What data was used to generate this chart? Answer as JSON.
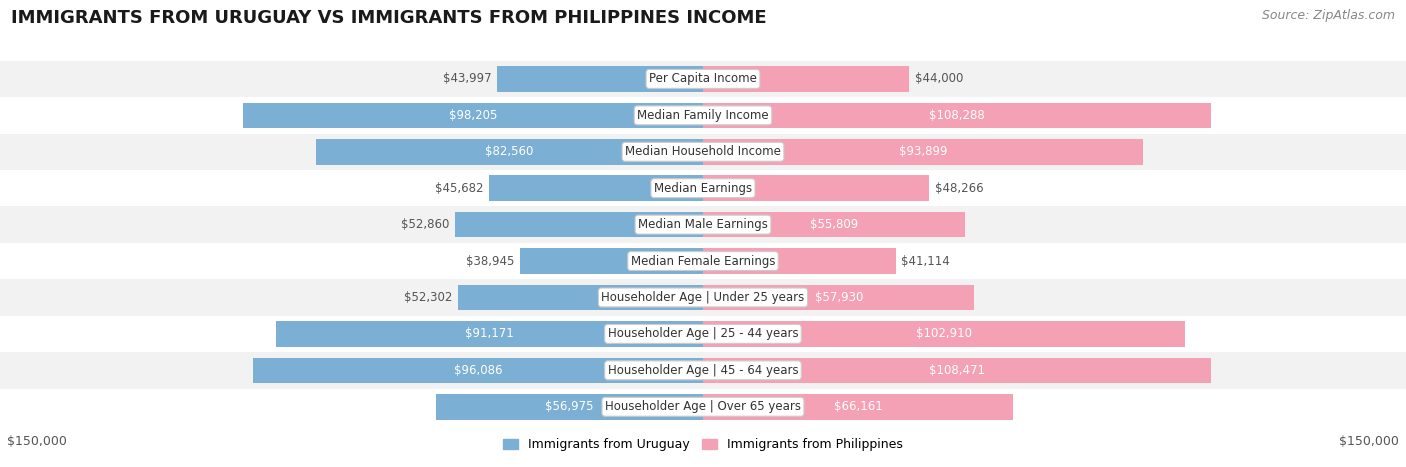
{
  "title": "IMMIGRANTS FROM URUGUAY VS IMMIGRANTS FROM PHILIPPINES INCOME",
  "source": "Source: ZipAtlas.com",
  "categories": [
    "Per Capita Income",
    "Median Family Income",
    "Median Household Income",
    "Median Earnings",
    "Median Male Earnings",
    "Median Female Earnings",
    "Householder Age | Under 25 years",
    "Householder Age | 25 - 44 years",
    "Householder Age | 45 - 64 years",
    "Householder Age | Over 65 years"
  ],
  "uruguay_values": [
    43997,
    98205,
    82560,
    45682,
    52860,
    38945,
    52302,
    91171,
    96086,
    56975
  ],
  "philippines_values": [
    44000,
    108288,
    93899,
    48266,
    55809,
    41114,
    57930,
    102910,
    108471,
    66161
  ],
  "uruguay_labels": [
    "$43,997",
    "$98,205",
    "$82,560",
    "$45,682",
    "$52,860",
    "$38,945",
    "$52,302",
    "$91,171",
    "$96,086",
    "$56,975"
  ],
  "philippines_labels": [
    "$44,000",
    "$108,288",
    "$93,899",
    "$48,266",
    "$55,809",
    "$41,114",
    "$57,930",
    "$102,910",
    "$108,471",
    "$66,161"
  ],
  "uruguay_color": "#7bafd4",
  "philippines_color": "#f4a0b5",
  "legend_uruguay": "Immigrants from Uruguay",
  "legend_philippines": "Immigrants from Philippines",
  "max_value": 150000,
  "axis_label_left": "$150,000",
  "axis_label_right": "$150,000",
  "title_fontsize": 13,
  "source_fontsize": 9,
  "bar_label_fontsize": 8.5,
  "category_fontsize": 8.5,
  "inside_label_threshold": 55000,
  "row_colors": [
    "#f2f2f2",
    "#ffffff",
    "#f2f2f2",
    "#ffffff",
    "#f2f2f2",
    "#ffffff",
    "#f2f2f2",
    "#ffffff",
    "#f2f2f2",
    "#ffffff"
  ]
}
